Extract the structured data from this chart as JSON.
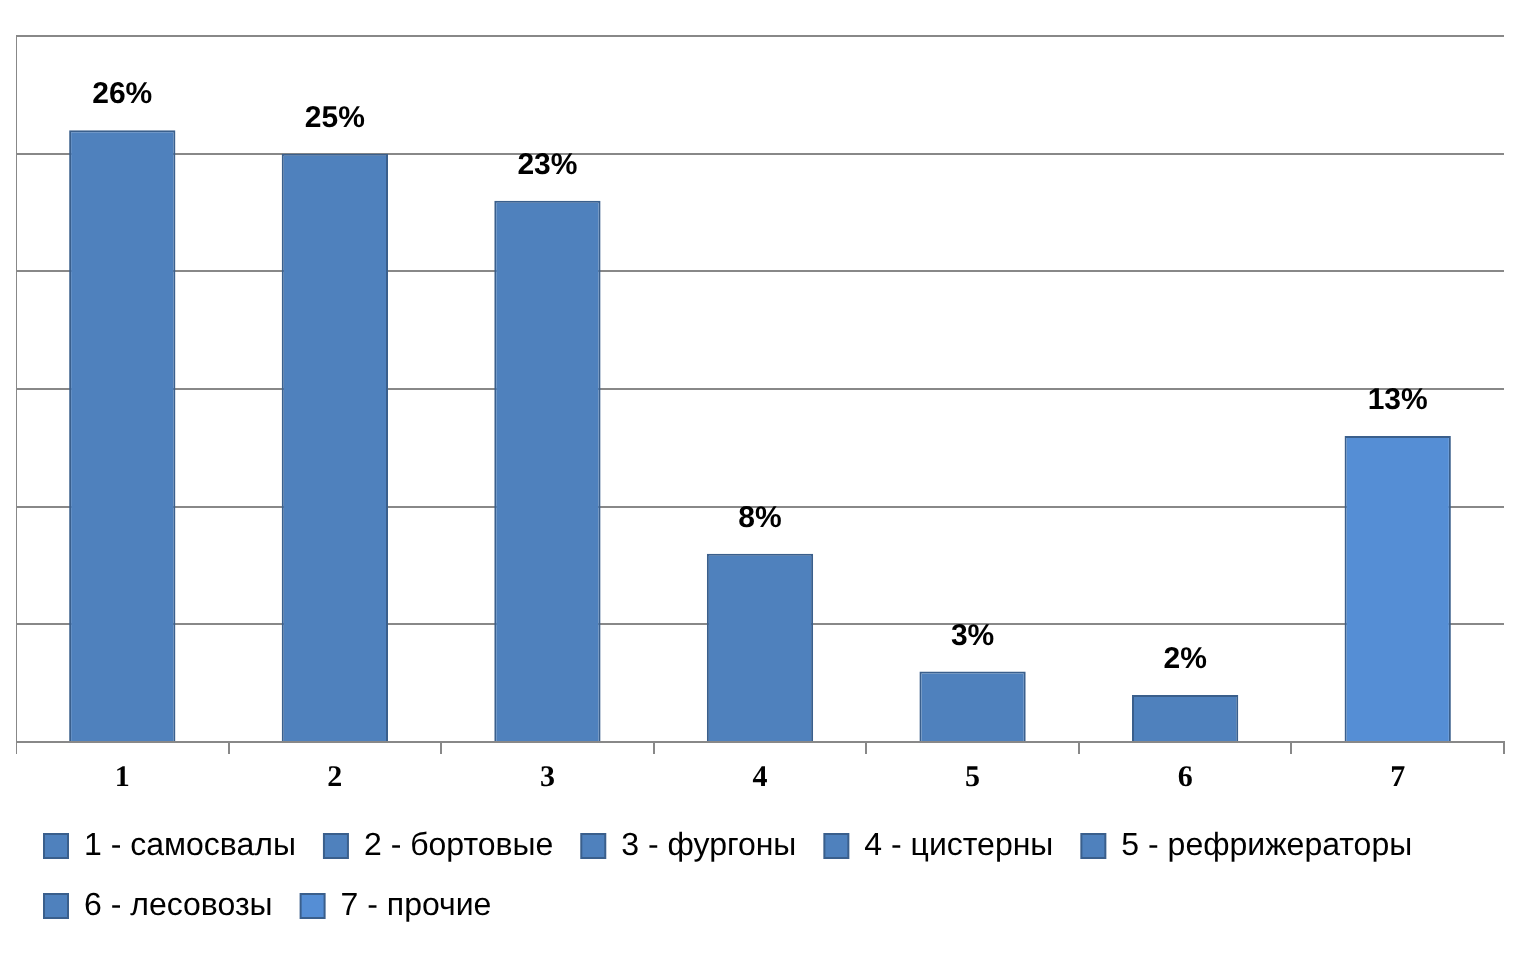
{
  "chart_data": {
    "type": "bar",
    "categories": [
      "1",
      "2",
      "3",
      "4",
      "5",
      "6",
      "7"
    ],
    "series": [
      {
        "name": "1 - самосвалы",
        "color": "#4f81bd",
        "values": [
          26,
          null,
          null,
          null,
          null,
          null,
          null
        ],
        "value_labels": [
          "26%",
          null,
          null,
          null,
          null,
          null,
          null
        ]
      },
      {
        "name": "2 - бортовые",
        "color": "#4f81bd",
        "values": [
          null,
          25,
          null,
          null,
          null,
          null,
          null
        ],
        "value_labels": [
          null,
          "25%",
          null,
          null,
          null,
          null,
          null
        ]
      },
      {
        "name": "3 - фургоны",
        "color": "#4f81bd",
        "values": [
          null,
          null,
          23,
          null,
          null,
          null,
          null
        ],
        "value_labels": [
          null,
          null,
          "23%",
          null,
          null,
          null,
          null
        ]
      },
      {
        "name": "4 - цистерны",
        "color": "#4f81bd",
        "values": [
          null,
          null,
          null,
          8,
          null,
          null,
          null
        ],
        "value_labels": [
          null,
          null,
          null,
          "8%",
          null,
          null,
          null
        ]
      },
      {
        "name": "5 - рефрижераторы",
        "color": "#4f81bd",
        "values": [
          null,
          null,
          null,
          null,
          3,
          null,
          null
        ],
        "value_labels": [
          null,
          null,
          null,
          null,
          "3%",
          null,
          null
        ]
      },
      {
        "name": "6 - лесовозы",
        "color": "#4f81bd",
        "values": [
          null,
          null,
          null,
          null,
          null,
          2,
          null
        ],
        "value_labels": [
          null,
          null,
          null,
          null,
          null,
          "2%",
          null
        ]
      },
      {
        "name": "7 - прочие",
        "color": "#558ed5",
        "values": [
          null,
          null,
          null,
          null,
          null,
          null,
          13
        ],
        "value_labels": [
          null,
          null,
          null,
          null,
          null,
          null,
          "13%"
        ]
      }
    ],
    "ylim": [
      0,
      30
    ],
    "yticks": [
      {
        "value": 0,
        "label": null
      },
      {
        "value": 5,
        "label": null
      },
      {
        "value": 10,
        "label": null
      },
      {
        "value": 15,
        "label": null
      },
      {
        "value": 20,
        "label": null
      },
      {
        "value": 25,
        "label": null
      },
      {
        "value": 30,
        "label": null
      }
    ],
    "tick_labels": "x",
    "grid": "y",
    "legend": "bottom"
  }
}
